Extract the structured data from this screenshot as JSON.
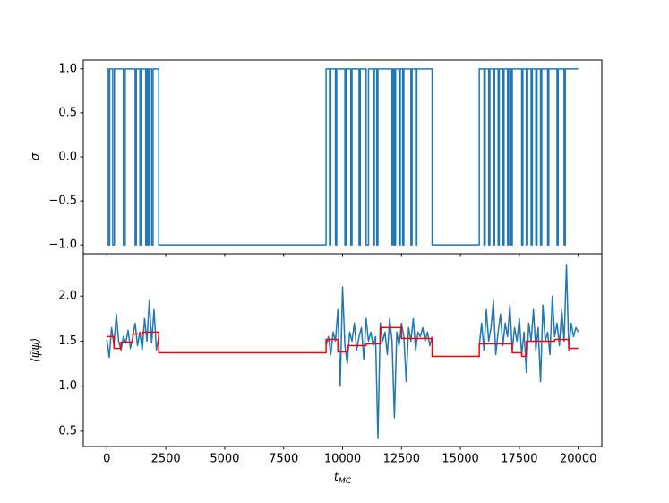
{
  "chart_data": [
    {
      "type": "line",
      "ylabel": "σ",
      "xlim": [
        -1000,
        21000
      ],
      "xticks": [
        0,
        2500,
        5000,
        7500,
        10000,
        12500,
        15000,
        17500,
        20000
      ],
      "xtick_labels": false,
      "ylim": [
        -1.1,
        1.1
      ],
      "yticks": [
        {
          "value": -1,
          "label": "−1.0"
        },
        {
          "value": -0.5,
          "label": "−0.5"
        },
        {
          "value": 0,
          "label": "0.0"
        },
        {
          "value": 0.5,
          "label": "0.5"
        },
        {
          "value": 1,
          "label": "1.0"
        }
      ],
      "series": [
        {
          "color": "#1f77b4",
          "x": [
            0,
            60,
            60,
            120,
            120,
            250,
            250,
            320,
            320,
            700,
            700,
            780,
            780,
            1200,
            1200,
            1250,
            1250,
            1400,
            1400,
            1460,
            1460,
            1650,
            1650,
            1700,
            1700,
            1750,
            1750,
            1800,
            1800,
            1900,
            1900,
            1960,
            1960,
            2200,
            2200,
            9300,
            9300,
            9450,
            9450,
            9500,
            9500,
            9700,
            9700,
            9750,
            9750,
            10100,
            10100,
            10150,
            10150,
            10350,
            10350,
            10400,
            10400,
            10700,
            10700,
            10750,
            10750,
            11000,
            11000,
            11100,
            11100,
            11300,
            11300,
            11350,
            11350,
            11450,
            11450,
            11500,
            11500,
            12100,
            12100,
            12150,
            12150,
            12200,
            12200,
            12250,
            12250,
            12400,
            12400,
            12450,
            12450,
            12550,
            12550,
            12600,
            12600,
            12900,
            12900,
            12950,
            12950,
            13100,
            13100,
            13150,
            13150,
            13800,
            13800,
            15800,
            15800,
            16000,
            16000,
            16050,
            16050,
            16200,
            16200,
            16250,
            16250,
            16400,
            16400,
            16450,
            16450,
            16600,
            16600,
            16650,
            16650,
            16800,
            16800,
            16850,
            16850,
            17000,
            17000,
            17050,
            17050,
            17150,
            17150,
            17200,
            17200,
            17600,
            17600,
            17650,
            17650,
            17800,
            17800,
            17850,
            17850,
            18000,
            18000,
            18050,
            18050,
            18200,
            18200,
            18250,
            18250,
            18400,
            18400,
            18450,
            18450,
            18700,
            18700,
            18750,
            18750,
            19100,
            19100,
            19150,
            19150,
            19400,
            19400,
            19450,
            19450,
            20000
          ],
          "values": [
            1,
            1,
            -1,
            -1,
            1,
            1,
            -1,
            -1,
            1,
            1,
            -1,
            -1,
            1,
            1,
            -1,
            -1,
            1,
            1,
            -1,
            -1,
            1,
            1,
            -1,
            -1,
            1,
            1,
            -1,
            -1,
            1,
            1,
            -1,
            -1,
            1,
            1,
            -1,
            -1,
            1,
            1,
            -1,
            -1,
            1,
            1,
            -1,
            -1,
            1,
            1,
            -1,
            -1,
            1,
            1,
            -1,
            -1,
            1,
            1,
            -1,
            -1,
            1,
            1,
            -1,
            -1,
            1,
            1,
            -1,
            -1,
            1,
            1,
            -1,
            -1,
            1,
            1,
            -1,
            -1,
            1,
            1,
            -1,
            -1,
            1,
            1,
            -1,
            -1,
            1,
            1,
            -1,
            -1,
            1,
            1,
            -1,
            -1,
            1,
            1,
            -1,
            -1,
            1,
            1,
            -1,
            -1,
            1,
            1,
            -1,
            -1,
            1,
            1,
            -1,
            -1,
            1,
            1,
            -1,
            -1,
            1,
            1,
            -1,
            -1,
            1,
            1,
            -1,
            -1,
            1,
            1,
            -1,
            -1,
            1,
            1,
            -1,
            -1,
            1,
            1,
            -1,
            -1,
            1,
            1,
            -1,
            -1,
            1,
            1,
            -1,
            -1,
            1,
            1,
            -1,
            -1,
            1,
            1,
            -1,
            -1,
            1,
            1,
            -1,
            -1,
            1,
            1,
            -1,
            -1,
            1,
            1,
            -1,
            -1,
            1,
            1
          ]
        }
      ]
    },
    {
      "type": "line",
      "ylabel": "⟨ψ̄ψ⟩",
      "xlabel": "t",
      "xlabel_sub": "MC",
      "xlim": [
        -1000,
        21000
      ],
      "xticks": [
        0,
        2500,
        5000,
        7500,
        10000,
        12500,
        15000,
        17500,
        20000
      ],
      "xtick_labels": true,
      "ylim": [
        0.33,
        2.47
      ],
      "yticks": [
        0.5,
        {
          "value": 1,
          "label": "1.0"
        },
        1.5,
        {
          "value": 2,
          "label": "2.0"
        }
      ],
      "series": [
        {
          "color": "#1f77b4",
          "x": [
            0,
            100,
            200,
            300,
            400,
            500,
            600,
            700,
            800,
            900,
            1000,
            1100,
            1200,
            1300,
            1400,
            1500,
            1600,
            1700,
            1800,
            1900,
            2000,
            2100,
            2200,
            2250,
            9300,
            9400,
            9500,
            9600,
            9700,
            9800,
            9900,
            10000,
            10100,
            10200,
            10300,
            10400,
            10500,
            10600,
            10700,
            10800,
            10900,
            11000,
            11100,
            11200,
            11300,
            11400,
            11500,
            11600,
            11700,
            11800,
            11900,
            12000,
            12100,
            12200,
            12300,
            12400,
            12500,
            12600,
            12700,
            12800,
            12900,
            13000,
            13100,
            13200,
            13300,
            13400,
            13500,
            13600,
            13700,
            13800,
            13900,
            15800,
            15900,
            16000,
            16100,
            16200,
            16300,
            16400,
            16500,
            16600,
            16700,
            16800,
            16900,
            17000,
            17100,
            17200,
            17300,
            17400,
            17500,
            17600,
            17700,
            17800,
            17900,
            18000,
            18100,
            18200,
            18300,
            18400,
            18500,
            18600,
            18700,
            18800,
            18900,
            19000,
            19100,
            19200,
            19300,
            19400,
            19500,
            19600,
            19700,
            19800,
            19900,
            20000
          ],
          "values": [
            1.52,
            1.32,
            1.65,
            1.45,
            1.8,
            1.5,
            1.4,
            1.55,
            1.48,
            1.62,
            1.42,
            1.55,
            1.7,
            1.45,
            1.6,
            1.4,
            1.75,
            1.5,
            1.95,
            1.48,
            1.85,
            1.4,
            1.55,
            null,
            1.45,
            1.55,
            1.35,
            1.6,
            1.5,
            1.85,
            1.0,
            2.1,
            1.45,
            1.25,
            1.6,
            1.5,
            1.7,
            1.4,
            1.55,
            1.65,
            1.3,
            1.75,
            1.5,
            1.6,
            1.45,
            1.55,
            0.42,
            1.7,
            1.5,
            1.6,
            1.35,
            1.75,
            1.5,
            0.65,
            1.6,
            1.45,
            1.7,
            1.55,
            1.05,
            1.65,
            1.5,
            1.75,
            1.4,
            1.6,
            1.55,
            1.65,
            1.5,
            1.6,
            1.45,
            1.55,
            null,
            1.45,
            1.7,
            1.4,
            1.85,
            1.5,
            1.65,
            1.95,
            1.35,
            1.6,
            1.8,
            1.45,
            1.7,
            1.55,
            1.9,
            1.4,
            1.65,
            1.5,
            1.75,
            1.35,
            1.6,
            1.15,
            1.7,
            1.5,
            1.85,
            1.4,
            1.65,
            1.05,
            1.9,
            1.5,
            1.6,
            1.35,
            2.0,
            1.55,
            1.7,
            1.45,
            1.85,
            1.5,
            2.35,
            1.4,
            1.7,
            1.55,
            1.65,
            1.6
          ]
        },
        {
          "color": "#ff0000",
          "x": [
            0,
            300,
            300,
            600,
            600,
            1100,
            1100,
            1500,
            1500,
            2200,
            2200,
            9300,
            9300,
            9800,
            9800,
            10200,
            10200,
            11000,
            11000,
            11600,
            11600,
            12500,
            12500,
            13800,
            13800,
            15800,
            15800,
            17200,
            17200,
            17600,
            17600,
            17800,
            17800,
            19000,
            19000,
            19600,
            19600,
            20000
          ],
          "values": [
            1.55,
            1.55,
            1.42,
            1.42,
            1.49,
            1.49,
            1.58,
            1.58,
            1.6,
            1.6,
            1.37,
            1.37,
            1.52,
            1.52,
            1.38,
            1.38,
            1.45,
            1.45,
            1.47,
            1.47,
            1.65,
            1.65,
            1.53,
            1.53,
            1.33,
            1.33,
            1.47,
            1.47,
            1.37,
            1.37,
            1.33,
            1.33,
            1.5,
            1.5,
            1.52,
            1.52,
            1.42,
            1.42
          ]
        }
      ]
    }
  ]
}
